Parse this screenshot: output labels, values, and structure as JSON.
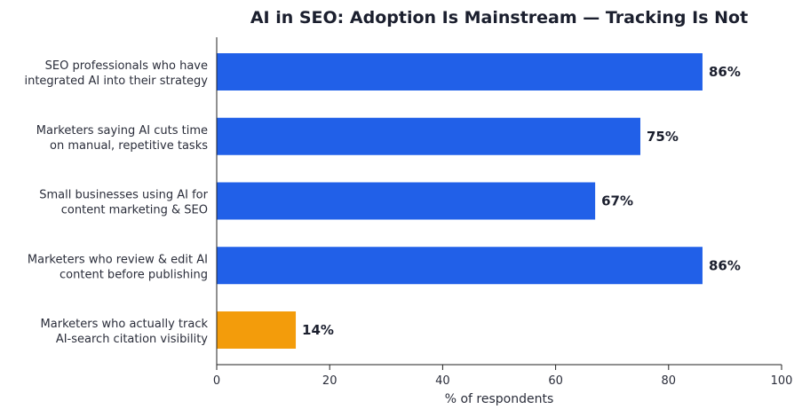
{
  "chart_data": {
    "type": "bar",
    "orientation": "horizontal",
    "title": "AI in SEO: Adoption Is Mainstream — Tracking Is Not",
    "xlabel": "% of respondents",
    "ylabel": "",
    "xlim": [
      0,
      100
    ],
    "xticks": [
      "0",
      "20",
      "40",
      "60",
      "80",
      "100"
    ],
    "grid": false,
    "categories": [
      [
        "SEO professionals who have",
        "integrated AI into their strategy"
      ],
      [
        "Marketers saying AI cuts time",
        "on manual, repetitive tasks"
      ],
      [
        "Small businesses using AI for",
        "content marketing & SEO"
      ],
      [
        "Marketers who review & edit AI",
        "content before publishing"
      ],
      [
        "Marketers who actually track",
        "AI-search citation visibility"
      ]
    ],
    "values": [
      86,
      75,
      67,
      86,
      14
    ],
    "value_labels": [
      "86%",
      "75%",
      "67%",
      "86%",
      "14%"
    ],
    "bar_colors": [
      "#2160e8",
      "#2160e8",
      "#2160e8",
      "#2160e8",
      "#f39c0b"
    ]
  }
}
